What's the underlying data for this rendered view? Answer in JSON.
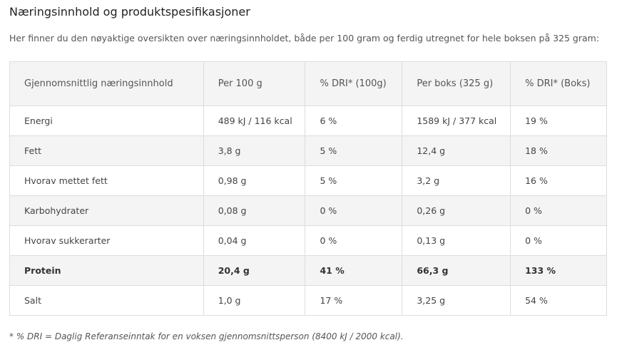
{
  "header": {
    "title": "Næringsinnhold og produktspesifikasjoner",
    "intro": "Her finner du den nøyaktige oversikten over næringsinnholdet, både per 100 gram og ferdig utregnet for hele boksen på 325 gram:"
  },
  "table": {
    "columns": [
      "Gjennomsnittlig næringsinnhold",
      "Per 100 g",
      "% DRI* (100g)",
      "Per boks (325 g)",
      "% DRI* (Boks)"
    ],
    "rows": [
      [
        "Energi",
        "489 kJ / 116 kcal",
        "6 %",
        "1589 kJ / 377 kcal",
        "19 %"
      ],
      [
        "Fett",
        "3,8 g",
        "5 %",
        "12,4 g",
        "18 %"
      ],
      [
        "Hvorav mettet fett",
        "0,98 g",
        "5 %",
        "3,2 g",
        "16 %"
      ],
      [
        "Karbohydrater",
        "0,08 g",
        "0 %",
        "0,26 g",
        "0 %"
      ],
      [
        "Hvorav sukkerarter",
        "0,04 g",
        "0 %",
        "0,13 g",
        "0 %"
      ],
      [
        "Protein",
        "20,4 g",
        "41 %",
        "66,3 g",
        "133 %"
      ],
      [
        "Salt",
        "1,0 g",
        "17 %",
        "3,25 g",
        "54 %"
      ]
    ]
  },
  "footnote": "* % DRI = Daglig Referanseinntak for en voksen gjennomsnittsperson (8400 kJ / 2000 kcal)."
}
